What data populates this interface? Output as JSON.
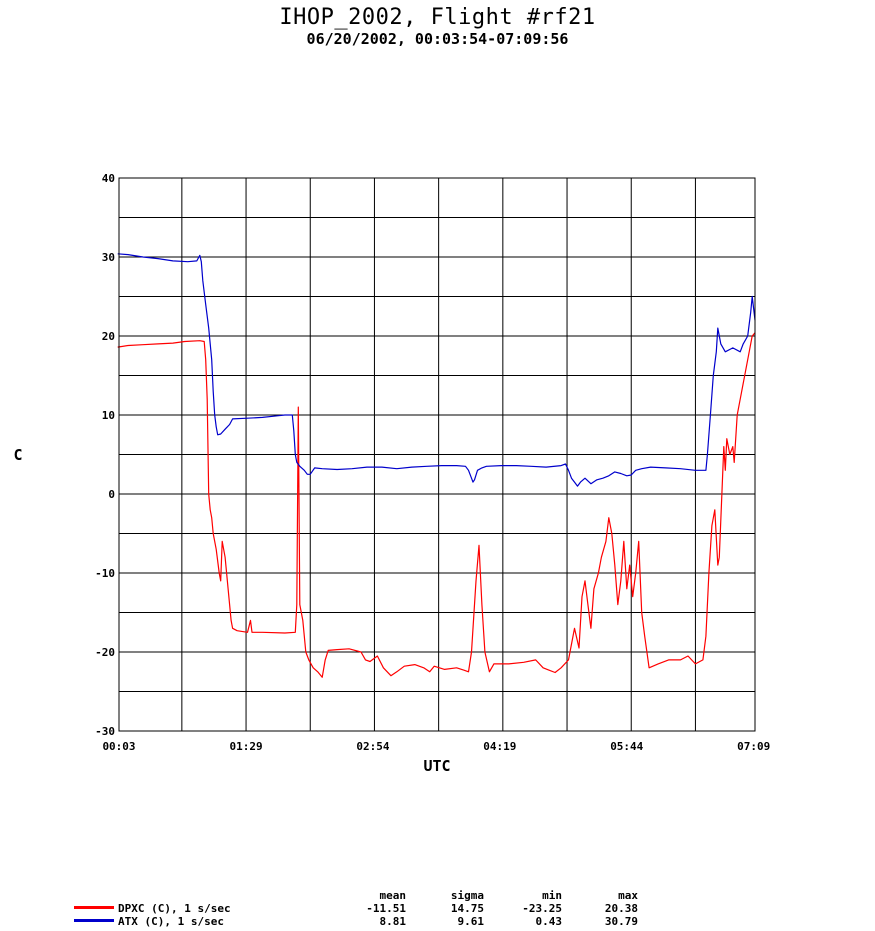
{
  "title": "IHOP_2002, Flight #rf21",
  "subtitle": "06/20/2002, 00:03:54-07:09:56",
  "chart_data": {
    "type": "line",
    "xlabel": "UTC",
    "ylabel": "C",
    "x_unit": "minutes UTC",
    "xlim": [
      3.9,
      429.9
    ],
    "ylim": [
      -30,
      40
    ],
    "x_ticks": [
      {
        "value": 3,
        "label": "00:03"
      },
      {
        "value": 89,
        "label": "01:29"
      },
      {
        "value": 174,
        "label": "02:54"
      },
      {
        "value": 259,
        "label": "04:19"
      },
      {
        "value": 344,
        "label": "05:44"
      },
      {
        "value": 429,
        "label": "07:09"
      }
    ],
    "y_ticks": [
      -30,
      -20,
      -10,
      0,
      10,
      20,
      30,
      40
    ],
    "grid": true,
    "series": [
      {
        "name": "DPXC (C), 1 s/sec",
        "color": "#ff0000",
        "points": [
          [
            3,
            18.6
          ],
          [
            10,
            18.8
          ],
          [
            20,
            18.9
          ],
          [
            30,
            19
          ],
          [
            40,
            19.1
          ],
          [
            48,
            19.3
          ],
          [
            58,
            19.4
          ],
          [
            61,
            19.3
          ],
          [
            62,
            17
          ],
          [
            63,
            12
          ],
          [
            64,
            0
          ],
          [
            65,
            -2
          ],
          [
            66,
            -3
          ],
          [
            67,
            -5
          ],
          [
            69,
            -7
          ],
          [
            71,
            -10
          ],
          [
            72,
            -11
          ],
          [
            73,
            -6
          ],
          [
            75,
            -8
          ],
          [
            77,
            -12
          ],
          [
            78,
            -14
          ],
          [
            79,
            -16
          ],
          [
            80,
            -17
          ],
          [
            83,
            -17.3
          ],
          [
            90,
            -17.5
          ],
          [
            92,
            -16
          ],
          [
            93,
            -17.5
          ],
          [
            100,
            -17.5
          ],
          [
            115,
            -17.6
          ],
          [
            122,
            -17.5
          ],
          [
            123,
            -14
          ],
          [
            124,
            11
          ],
          [
            125,
            -14
          ],
          [
            127,
            -16
          ],
          [
            129,
            -20
          ],
          [
            131,
            -21
          ],
          [
            134,
            -22
          ],
          [
            137,
            -22.5
          ],
          [
            140,
            -23.2
          ],
          [
            142,
            -21
          ],
          [
            144,
            -19.8
          ],
          [
            150,
            -19.7
          ],
          [
            158,
            -19.6
          ],
          [
            166,
            -20
          ],
          [
            169,
            -21
          ],
          [
            172,
            -21.2
          ],
          [
            177,
            -20.5
          ],
          [
            181,
            -22
          ],
          [
            186,
            -23
          ],
          [
            190,
            -22.5
          ],
          [
            195,
            -21.8
          ],
          [
            202,
            -21.6
          ],
          [
            208,
            -22
          ],
          [
            212,
            -22.5
          ],
          [
            215,
            -21.8
          ],
          [
            222,
            -22.2
          ],
          [
            230,
            -22
          ],
          [
            235,
            -22.3
          ],
          [
            238,
            -22.5
          ],
          [
            240,
            -20
          ],
          [
            243,
            -11
          ],
          [
            245,
            -6.5
          ],
          [
            247,
            -14
          ],
          [
            249,
            -20
          ],
          [
            252,
            -22.5
          ],
          [
            255,
            -21.5
          ],
          [
            265,
            -21.5
          ],
          [
            275,
            -21.3
          ],
          [
            283,
            -21
          ],
          [
            288,
            -22
          ],
          [
            292,
            -22.3
          ],
          [
            296,
            -22.6
          ],
          [
            300,
            -22
          ],
          [
            305,
            -21
          ],
          [
            309,
            -17
          ],
          [
            312,
            -19.5
          ],
          [
            314,
            -13
          ],
          [
            316,
            -11
          ],
          [
            318,
            -14
          ],
          [
            320,
            -17
          ],
          [
            322,
            -12
          ],
          [
            325,
            -10
          ],
          [
            327,
            -8
          ],
          [
            330,
            -6
          ],
          [
            332,
            -3
          ],
          [
            334,
            -5
          ],
          [
            336,
            -9
          ],
          [
            338,
            -14
          ],
          [
            340,
            -11
          ],
          [
            342,
            -6
          ],
          [
            344,
            -12
          ],
          [
            346,
            -9
          ],
          [
            348,
            -13
          ],
          [
            350,
            -10
          ],
          [
            352,
            -6
          ],
          [
            354,
            -15
          ],
          [
            356,
            -18
          ],
          [
            359,
            -22
          ],
          [
            365,
            -21.5
          ],
          [
            372,
            -21
          ],
          [
            380,
            -21
          ],
          [
            385,
            -20.5
          ],
          [
            390,
            -21.5
          ],
          [
            395,
            -21
          ],
          [
            397,
            -18
          ],
          [
            399,
            -10
          ],
          [
            401,
            -4
          ],
          [
            403,
            -2
          ],
          [
            405,
            -9
          ],
          [
            406,
            -8
          ],
          [
            409,
            6
          ],
          [
            410,
            3
          ],
          [
            411,
            7
          ],
          [
            413,
            5
          ],
          [
            415,
            6
          ],
          [
            416,
            4
          ],
          [
            418,
            10
          ],
          [
            420,
            12
          ],
          [
            422,
            14
          ],
          [
            424,
            16
          ],
          [
            426,
            18
          ],
          [
            428,
            20
          ],
          [
            429.9,
            20.4
          ]
        ]
      },
      {
        "name": "ATX (C), 1 s/sec",
        "color": "#0000cc",
        "points": [
          [
            3,
            30.4
          ],
          [
            10,
            30.3
          ],
          [
            20,
            30
          ],
          [
            30,
            29.8
          ],
          [
            40,
            29.5
          ],
          [
            50,
            29.4
          ],
          [
            56,
            29.5
          ],
          [
            58,
            30.2
          ],
          [
            59,
            29.4
          ],
          [
            60,
            27
          ],
          [
            62,
            24
          ],
          [
            64,
            21
          ],
          [
            66,
            17
          ],
          [
            67,
            13
          ],
          [
            68,
            10
          ],
          [
            69,
            8.5
          ],
          [
            70,
            7.5
          ],
          [
            72,
            7.6
          ],
          [
            75,
            8.2
          ],
          [
            78,
            8.8
          ],
          [
            80,
            9.5
          ],
          [
            90,
            9.6
          ],
          [
            100,
            9.7
          ],
          [
            110,
            9.9
          ],
          [
            115,
            10
          ],
          [
            120,
            10
          ],
          [
            121,
            8
          ],
          [
            122,
            5
          ],
          [
            123,
            4
          ],
          [
            125,
            3.5
          ],
          [
            128,
            3
          ],
          [
            130,
            2.5
          ],
          [
            132,
            2.5
          ],
          [
            135,
            3.3
          ],
          [
            140,
            3.2
          ],
          [
            150,
            3.1
          ],
          [
            160,
            3.2
          ],
          [
            170,
            3.4
          ],
          [
            180,
            3.4
          ],
          [
            190,
            3.2
          ],
          [
            200,
            3.4
          ],
          [
            210,
            3.5
          ],
          [
            220,
            3.6
          ],
          [
            230,
            3.6
          ],
          [
            236,
            3.5
          ],
          [
            238,
            3
          ],
          [
            240,
            2
          ],
          [
            241,
            1.5
          ],
          [
            242,
            1.8
          ],
          [
            244,
            3
          ],
          [
            247,
            3.3
          ],
          [
            250,
            3.5
          ],
          [
            260,
            3.6
          ],
          [
            270,
            3.6
          ],
          [
            280,
            3.5
          ],
          [
            290,
            3.4
          ],
          [
            300,
            3.6
          ],
          [
            303,
            3.8
          ],
          [
            305,
            3
          ],
          [
            307,
            2
          ],
          [
            309,
            1.5
          ],
          [
            311,
            1
          ],
          [
            313,
            1.5
          ],
          [
            316,
            2
          ],
          [
            320,
            1.3
          ],
          [
            324,
            1.8
          ],
          [
            328,
            2
          ],
          [
            332,
            2.3
          ],
          [
            336,
            2.8
          ],
          [
            340,
            2.6
          ],
          [
            344,
            2.3
          ],
          [
            347,
            2.4
          ],
          [
            350,
            3
          ],
          [
            354,
            3.2
          ],
          [
            360,
            3.4
          ],
          [
            370,
            3.3
          ],
          [
            380,
            3.2
          ],
          [
            390,
            3
          ],
          [
            395,
            3
          ],
          [
            397,
            3
          ],
          [
            398,
            5
          ],
          [
            400,
            10
          ],
          [
            402,
            15
          ],
          [
            404,
            18
          ],
          [
            405,
            21
          ],
          [
            407,
            19
          ],
          [
            410,
            18
          ],
          [
            415,
            18.5
          ],
          [
            420,
            18
          ],
          [
            422,
            19
          ],
          [
            425,
            20
          ],
          [
            427,
            23
          ],
          [
            428,
            25
          ],
          [
            429.9,
            22
          ]
        ]
      }
    ],
    "stats": {
      "headers": [
        "mean",
        "sigma",
        "min",
        "max"
      ],
      "rows": [
        {
          "name": "DPXC (C), 1 s/sec",
          "color": "#ff0000",
          "mean": "-11.51",
          "sigma": "14.75",
          "min": "-23.25",
          "max": "20.38"
        },
        {
          "name": "ATX (C), 1 s/sec",
          "color": "#0000cc",
          "mean": "8.81",
          "sigma": "9.61",
          "min": "0.43",
          "max": "30.79"
        }
      ]
    }
  }
}
